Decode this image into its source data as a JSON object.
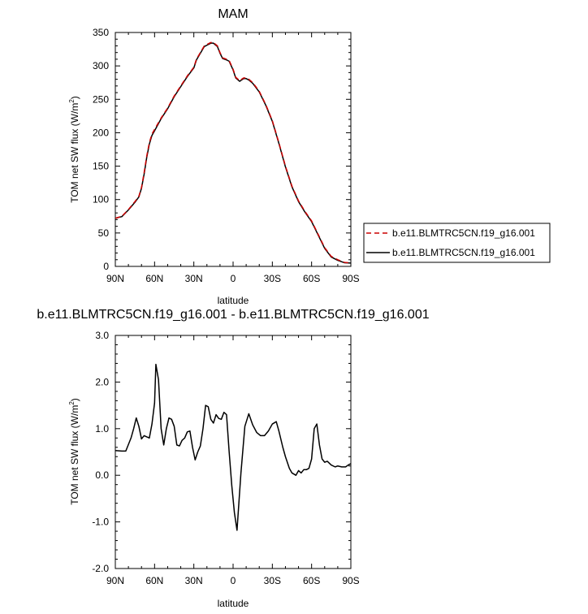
{
  "chart_data": [
    {
      "type": "line",
      "title": "MAM",
      "xlabel": "latitude",
      "ylabel": "TOM net SW flux (W/m",
      "ylabel_sup": "2",
      "ylabel_end": ")",
      "xlim": [
        90,
        -90
      ],
      "ylim": [
        0,
        350
      ],
      "x_ticks": [
        90,
        60,
        30,
        0,
        -30,
        -60,
        -90
      ],
      "x_tick_labels": [
        "90N",
        "60N",
        "30N",
        "0",
        "30S",
        "60S",
        "90S"
      ],
      "y_ticks": [
        0,
        50,
        100,
        150,
        200,
        250,
        300,
        350
      ],
      "y_tick_labels": [
        "0",
        "50",
        "100",
        "150",
        "200",
        "250",
        "300",
        "350"
      ],
      "grid": false,
      "legend_placement": "right",
      "series": [
        {
          "name": "b.e11.BLMTRC5CN.f19_g16.001",
          "color": "#cc0000",
          "dash": "dashed",
          "x": [
            90,
            85,
            80,
            75,
            72,
            70,
            68,
            66,
            64,
            62,
            60,
            55,
            50,
            45,
            40,
            35,
            30,
            28,
            25,
            22,
            20,
            17,
            15,
            12,
            10,
            8,
            5,
            3,
            0,
            -2,
            -5,
            -8,
            -10,
            -12,
            -15,
            -20,
            -25,
            -30,
            -35,
            -40,
            -45,
            -50,
            -55,
            -60,
            -62,
            -65,
            -70,
            -75,
            -80,
            -85,
            -90
          ],
          "y": [
            72,
            75,
            85,
            97,
            105,
            118,
            140,
            165,
            185,
            198,
            205,
            222,
            237,
            255,
            270,
            285,
            298,
            310,
            320,
            330,
            332,
            335,
            335,
            330,
            320,
            312,
            310,
            308,
            295,
            283,
            278,
            282,
            282,
            280,
            275,
            262,
            242,
            218,
            185,
            150,
            120,
            98,
            82,
            68,
            60,
            48,
            28,
            15,
            10,
            6,
            5
          ]
        },
        {
          "name": "b.e11.BLMTRC5CN.f19_g16.001",
          "color": "#000000",
          "dash": "solid",
          "x": [
            90,
            85,
            80,
            75,
            72,
            70,
            68,
            66,
            64,
            62,
            60,
            55,
            50,
            45,
            40,
            35,
            30,
            28,
            25,
            22,
            20,
            17,
            15,
            12,
            10,
            8,
            5,
            3,
            0,
            -2,
            -5,
            -8,
            -10,
            -12,
            -15,
            -20,
            -25,
            -30,
            -35,
            -40,
            -45,
            -50,
            -55,
            -60,
            -62,
            -65,
            -70,
            -75,
            -80,
            -85,
            -90
          ],
          "y": [
            72,
            74.5,
            84.5,
            96,
            104,
            117,
            138,
            163,
            183,
            196,
            203,
            221,
            236,
            254,
            269,
            284,
            297,
            309,
            319,
            329,
            331,
            334,
            334,
            329,
            319,
            311,
            309,
            307,
            294,
            282,
            277,
            281,
            281,
            279,
            274,
            261,
            241,
            217,
            184,
            149,
            119,
            97,
            81,
            67,
            59,
            47,
            27,
            14,
            9,
            5.5,
            5
          ]
        }
      ]
    },
    {
      "type": "line",
      "title": "b.e11.BLMTRC5CN.f19_g16.001 - b.e11.BLMTRC5CN.f19_g16.001",
      "xlabel": "latitude",
      "ylabel": "TOM net SW flux (W/m",
      "ylabel_sup": "2",
      "ylabel_end": ")",
      "xlim": [
        90,
        -90
      ],
      "ylim": [
        -2.0,
        3.0
      ],
      "x_ticks": [
        90,
        60,
        30,
        0,
        -30,
        -60,
        -90
      ],
      "x_tick_labels": [
        "90N",
        "60N",
        "30N",
        "0",
        "30S",
        "60S",
        "90S"
      ],
      "y_ticks": [
        3.0,
        2.0,
        1.0,
        0.0,
        -1.0,
        -2.0
      ],
      "y_tick_labels": [
        "3.0",
        "2.0",
        "1.0",
        "0.0",
        "-1.0",
        "-2.0"
      ],
      "grid": false,
      "series": [
        {
          "color": "#000000",
          "x": [
            90,
            85,
            82,
            78,
            76,
            74,
            72,
            70,
            68,
            64,
            62,
            60,
            59,
            57,
            55,
            53,
            51,
            49,
            47,
            45,
            43,
            41,
            39,
            37,
            35,
            33,
            31,
            29,
            27,
            25,
            23,
            21,
            19,
            17,
            15,
            13,
            11,
            9,
            7,
            5,
            3,
            1,
            -1,
            -3,
            -6,
            -9,
            -12,
            -15,
            -18,
            -21,
            -24,
            -27,
            -30,
            -33,
            -35,
            -38,
            -40,
            -43,
            -45,
            -48,
            -50,
            -52,
            -54,
            -56,
            -58,
            -60,
            -62,
            -64,
            -66,
            -68,
            -70,
            -72,
            -75,
            -78,
            -80,
            -83,
            -86,
            -88,
            -90
          ],
          "y": [
            0.53,
            0.52,
            0.52,
            0.8,
            1.0,
            1.23,
            1.05,
            0.78,
            0.85,
            0.8,
            1.1,
            1.55,
            2.38,
            2.05,
            1.0,
            0.65,
            1.0,
            1.23,
            1.2,
            1.05,
            0.65,
            0.63,
            0.75,
            0.8,
            0.93,
            0.95,
            0.6,
            0.33,
            0.5,
            0.63,
            1.0,
            1.5,
            1.47,
            1.2,
            1.12,
            1.3,
            1.22,
            1.2,
            1.35,
            1.3,
            0.5,
            -0.22,
            -0.8,
            -1.18,
            0.05,
            1.05,
            1.32,
            1.08,
            0.92,
            0.85,
            0.85,
            0.95,
            1.1,
            1.15,
            0.95,
            0.6,
            0.4,
            0.15,
            0.05,
            0.0,
            0.1,
            0.05,
            0.12,
            0.12,
            0.15,
            0.35,
            1.0,
            1.1,
            0.65,
            0.35,
            0.28,
            0.3,
            0.22,
            0.18,
            0.2,
            0.18,
            0.18,
            0.22,
            0.25
          ]
        }
      ]
    }
  ]
}
